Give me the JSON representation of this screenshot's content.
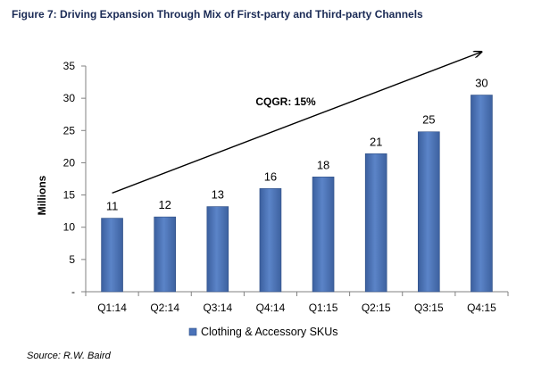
{
  "title": "Figure 7: Driving Expansion Through Mix of First-party and Third-party Channels",
  "source": "Source: R.W. Baird",
  "chart_data": {
    "type": "bar",
    "categories": [
      "Q1:14",
      "Q2:14",
      "Q3:14",
      "Q4:14",
      "Q1:15",
      "Q2:15",
      "Q3:15",
      "Q4:15"
    ],
    "series": [
      {
        "name": "Clothing & Accessory SKUs",
        "values": [
          11.4,
          11.6,
          13.2,
          16,
          17.8,
          21.4,
          24.8,
          30.5
        ],
        "data_labels": [
          "11",
          "12",
          "13",
          "16",
          "18",
          "21",
          "25",
          "30"
        ],
        "color": "#4a72b8"
      }
    ],
    "ylabel": "Millions",
    "ylim": [
      0,
      35
    ],
    "yticks": [
      0,
      5,
      10,
      15,
      20,
      25,
      30,
      35
    ],
    "ytick_labels": [
      "-",
      "5",
      "10",
      "15",
      "20",
      "25",
      "30",
      "35"
    ],
    "grid": false,
    "legend": "bottom",
    "annotation": {
      "text": "CQGR:  15%",
      "arrow_from": {
        "category": "Q1:14",
        "value": 15.3
      },
      "arrow_to": {
        "category": "Q4:15",
        "value": 37.2
      }
    }
  }
}
